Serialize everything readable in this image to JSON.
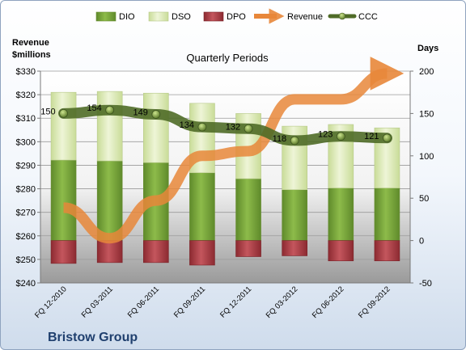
{
  "chart_data": {
    "type": "bar",
    "title": "Quarterly Periods",
    "company": "Bristow Group",
    "left_axis_label": [
      "Revenue",
      "$millions"
    ],
    "right_axis_label": "Days",
    "categories": [
      "FQ 12-2010",
      "FQ 03-2011",
      "FQ 06-2011",
      "FQ 09-2011",
      "FQ 12-2011",
      "FQ 03-2012",
      "FQ 06-2012",
      "FQ 09-2012"
    ],
    "left_axis": {
      "min": 240,
      "max": 330,
      "step": 10,
      "prefix": "$",
      "ticks": [
        "$330",
        "$320",
        "$310",
        "$300",
        "$290",
        "$280",
        "$270",
        "$260",
        "$250",
        "$240"
      ]
    },
    "right_axis": {
      "min": -50,
      "max": 200,
      "step": 50,
      "ticks": [
        "200",
        "150",
        "100",
        "50",
        "0",
        "-50"
      ]
    },
    "series": [
      {
        "name": "DIO",
        "axis": "days",
        "values": [
          95,
          94,
          92,
          80,
          73,
          60,
          62,
          62
        ],
        "color": "#77a33c"
      },
      {
        "name": "DSO",
        "axis": "days",
        "values": [
          80,
          82,
          82,
          82,
          77,
          75,
          75,
          71
        ],
        "color": "#dbe8b6"
      },
      {
        "name": "DPO",
        "axis": "days",
        "values": [
          -27,
          -26,
          -26,
          -29,
          -19,
          -18,
          -24,
          -24
        ],
        "color": "#a8383f"
      },
      {
        "name": "Revenue",
        "axis": "revenue",
        "values": [
          272,
          259,
          275,
          294,
          296,
          318,
          318,
          329
        ],
        "color": "#e8873a"
      },
      {
        "name": "CCC",
        "axis": "days",
        "values": [
          150,
          154,
          149,
          134,
          132,
          118,
          123,
          121
        ],
        "color": "#5b7a2a"
      }
    ],
    "ccc_labels": [
      "150",
      "154",
      "149",
      "134",
      "132",
      "118",
      "123",
      "121"
    ],
    "grid": true,
    "legend_position": "top"
  }
}
